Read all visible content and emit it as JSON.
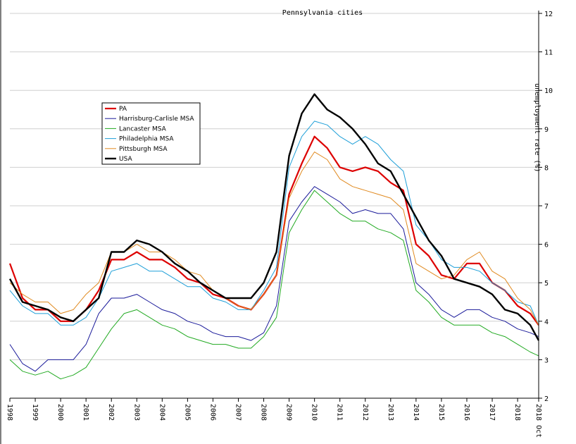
{
  "chart_data": {
    "type": "line",
    "title": "Pennsylvania cities",
    "xlabel": "",
    "ylabel": "unemployment rate (%)",
    "ylim": [
      2,
      12
    ],
    "y_ticks": [
      2,
      3,
      4,
      5,
      6,
      7,
      8,
      9,
      10,
      11,
      12
    ],
    "x_range": [
      1998.0,
      2018.83
    ],
    "x_tick_labels": [
      "1998",
      "1999",
      "2000",
      "2001",
      "2002",
      "2003",
      "2004",
      "2005",
      "2006",
      "2007",
      "2008",
      "2009",
      "2010",
      "2011",
      "2012",
      "2013",
      "2014",
      "2015",
      "2016",
      "2017",
      "2018",
      "2018 Oct"
    ],
    "grid": true,
    "legend_position": "upper-left",
    "series": [
      {
        "name": "PA",
        "color": "#dd0000",
        "width": 2.2,
        "points": [
          [
            1998.0,
            5.5
          ],
          [
            1998.5,
            4.6
          ],
          [
            1999.0,
            4.3
          ],
          [
            1999.5,
            4.3
          ],
          [
            2000.0,
            4.0
          ],
          [
            2000.5,
            4.0
          ],
          [
            2001.0,
            4.3
          ],
          [
            2001.5,
            4.8
          ],
          [
            2002.0,
            5.6
          ],
          [
            2002.5,
            5.6
          ],
          [
            2003.0,
            5.8
          ],
          [
            2003.5,
            5.6
          ],
          [
            2004.0,
            5.6
          ],
          [
            2004.5,
            5.4
          ],
          [
            2005.0,
            5.1
          ],
          [
            2005.5,
            5.0
          ],
          [
            2006.0,
            4.7
          ],
          [
            2006.5,
            4.6
          ],
          [
            2007.0,
            4.4
          ],
          [
            2007.5,
            4.3
          ],
          [
            2008.0,
            4.7
          ],
          [
            2008.5,
            5.2
          ],
          [
            2009.0,
            7.3
          ],
          [
            2009.5,
            8.1
          ],
          [
            2010.0,
            8.8
          ],
          [
            2010.5,
            8.5
          ],
          [
            2011.0,
            8.0
          ],
          [
            2011.5,
            7.9
          ],
          [
            2012.0,
            8.0
          ],
          [
            2012.5,
            7.9
          ],
          [
            2013.0,
            7.6
          ],
          [
            2013.5,
            7.4
          ],
          [
            2014.0,
            6.0
          ],
          [
            2014.5,
            5.7
          ],
          [
            2015.0,
            5.2
          ],
          [
            2015.5,
            5.1
          ],
          [
            2016.0,
            5.5
          ],
          [
            2016.5,
            5.5
          ],
          [
            2017.0,
            5.0
          ],
          [
            2017.5,
            4.8
          ],
          [
            2018.0,
            4.4
          ],
          [
            2018.5,
            4.2
          ],
          [
            2018.83,
            3.9
          ]
        ]
      },
      {
        "name": "Harrisburg-Carlisle MSA",
        "color": "#1a1a9a",
        "width": 1,
        "points": [
          [
            1998.0,
            3.4
          ],
          [
            1998.5,
            2.9
          ],
          [
            1999.0,
            2.7
          ],
          [
            1999.5,
            3.0
          ],
          [
            2000.0,
            3.0
          ],
          [
            2000.5,
            3.0
          ],
          [
            2001.0,
            3.4
          ],
          [
            2001.5,
            4.2
          ],
          [
            2002.0,
            4.6
          ],
          [
            2002.5,
            4.6
          ],
          [
            2003.0,
            4.7
          ],
          [
            2003.5,
            4.5
          ],
          [
            2004.0,
            4.3
          ],
          [
            2004.5,
            4.2
          ],
          [
            2005.0,
            4.0
          ],
          [
            2005.5,
            3.9
          ],
          [
            2006.0,
            3.7
          ],
          [
            2006.5,
            3.6
          ],
          [
            2007.0,
            3.6
          ],
          [
            2007.5,
            3.5
          ],
          [
            2008.0,
            3.7
          ],
          [
            2008.5,
            4.4
          ],
          [
            2009.0,
            6.6
          ],
          [
            2009.5,
            7.1
          ],
          [
            2010.0,
            7.5
          ],
          [
            2010.5,
            7.3
          ],
          [
            2011.0,
            7.1
          ],
          [
            2011.5,
            6.8
          ],
          [
            2012.0,
            6.9
          ],
          [
            2012.5,
            6.8
          ],
          [
            2013.0,
            6.8
          ],
          [
            2013.5,
            6.4
          ],
          [
            2014.0,
            5.0
          ],
          [
            2014.5,
            4.7
          ],
          [
            2015.0,
            4.3
          ],
          [
            2015.5,
            4.1
          ],
          [
            2016.0,
            4.3
          ],
          [
            2016.5,
            4.3
          ],
          [
            2017.0,
            4.1
          ],
          [
            2017.5,
            4.0
          ],
          [
            2018.0,
            3.8
          ],
          [
            2018.5,
            3.7
          ],
          [
            2018.83,
            3.6
          ]
        ]
      },
      {
        "name": "Lancaster MSA",
        "color": "#22aa22",
        "width": 1,
        "points": [
          [
            1998.0,
            3.0
          ],
          [
            1998.5,
            2.7
          ],
          [
            1999.0,
            2.6
          ],
          [
            1999.5,
            2.7
          ],
          [
            2000.0,
            2.5
          ],
          [
            2000.5,
            2.6
          ],
          [
            2001.0,
            2.8
          ],
          [
            2001.5,
            3.3
          ],
          [
            2002.0,
            3.8
          ],
          [
            2002.5,
            4.2
          ],
          [
            2003.0,
            4.3
          ],
          [
            2003.5,
            4.1
          ],
          [
            2004.0,
            3.9
          ],
          [
            2004.5,
            3.8
          ],
          [
            2005.0,
            3.6
          ],
          [
            2005.5,
            3.5
          ],
          [
            2006.0,
            3.4
          ],
          [
            2006.5,
            3.4
          ],
          [
            2007.0,
            3.3
          ],
          [
            2007.5,
            3.3
          ],
          [
            2008.0,
            3.6
          ],
          [
            2008.5,
            4.1
          ],
          [
            2009.0,
            6.3
          ],
          [
            2009.5,
            6.9
          ],
          [
            2010.0,
            7.4
          ],
          [
            2010.5,
            7.1
          ],
          [
            2011.0,
            6.8
          ],
          [
            2011.5,
            6.6
          ],
          [
            2012.0,
            6.6
          ],
          [
            2012.5,
            6.4
          ],
          [
            2013.0,
            6.3
          ],
          [
            2013.5,
            6.1
          ],
          [
            2014.0,
            4.8
          ],
          [
            2014.5,
            4.5
          ],
          [
            2015.0,
            4.1
          ],
          [
            2015.5,
            3.9
          ],
          [
            2016.0,
            3.9
          ],
          [
            2016.5,
            3.9
          ],
          [
            2017.0,
            3.7
          ],
          [
            2017.5,
            3.6
          ],
          [
            2018.0,
            3.4
          ],
          [
            2018.5,
            3.2
          ],
          [
            2018.83,
            3.1
          ]
        ]
      },
      {
        "name": "Philadelphia MSA",
        "color": "#1e9fd8",
        "width": 1,
        "points": [
          [
            1998.0,
            4.8
          ],
          [
            1998.5,
            4.4
          ],
          [
            1999.0,
            4.2
          ],
          [
            1999.5,
            4.2
          ],
          [
            2000.0,
            3.9
          ],
          [
            2000.5,
            3.9
          ],
          [
            2001.0,
            4.1
          ],
          [
            2001.5,
            4.6
          ],
          [
            2002.0,
            5.3
          ],
          [
            2002.5,
            5.4
          ],
          [
            2003.0,
            5.5
          ],
          [
            2003.5,
            5.3
          ],
          [
            2004.0,
            5.3
          ],
          [
            2004.5,
            5.1
          ],
          [
            2005.0,
            4.9
          ],
          [
            2005.5,
            4.9
          ],
          [
            2006.0,
            4.6
          ],
          [
            2006.5,
            4.5
          ],
          [
            2007.0,
            4.3
          ],
          [
            2007.5,
            4.3
          ],
          [
            2008.0,
            4.8
          ],
          [
            2008.5,
            5.4
          ],
          [
            2009.0,
            8.0
          ],
          [
            2009.5,
            8.8
          ],
          [
            2010.0,
            9.2
          ],
          [
            2010.5,
            9.1
          ],
          [
            2011.0,
            8.8
          ],
          [
            2011.5,
            8.6
          ],
          [
            2012.0,
            8.8
          ],
          [
            2012.5,
            8.6
          ],
          [
            2013.0,
            8.2
          ],
          [
            2013.5,
            7.9
          ],
          [
            2014.0,
            6.5
          ],
          [
            2014.5,
            6.1
          ],
          [
            2015.0,
            5.6
          ],
          [
            2015.5,
            5.4
          ],
          [
            2016.0,
            5.4
          ],
          [
            2016.5,
            5.3
          ],
          [
            2017.0,
            5.0
          ],
          [
            2017.5,
            4.8
          ],
          [
            2018.0,
            4.5
          ],
          [
            2018.5,
            4.4
          ],
          [
            2018.83,
            3.9
          ]
        ]
      },
      {
        "name": "Pittsburgh MSA",
        "color": "#e08a20",
        "width": 1,
        "points": [
          [
            1998.0,
            5.0
          ],
          [
            1998.5,
            4.7
          ],
          [
            1999.0,
            4.5
          ],
          [
            1999.5,
            4.5
          ],
          [
            2000.0,
            4.2
          ],
          [
            2000.5,
            4.3
          ],
          [
            2001.0,
            4.7
          ],
          [
            2001.5,
            5.0
          ],
          [
            2002.0,
            5.8
          ],
          [
            2002.5,
            5.8
          ],
          [
            2003.0,
            6.0
          ],
          [
            2003.5,
            5.8
          ],
          [
            2004.0,
            5.8
          ],
          [
            2004.5,
            5.6
          ],
          [
            2005.0,
            5.3
          ],
          [
            2005.5,
            5.2
          ],
          [
            2006.0,
            4.8
          ],
          [
            2006.5,
            4.6
          ],
          [
            2007.0,
            4.4
          ],
          [
            2007.5,
            4.3
          ],
          [
            2008.0,
            4.7
          ],
          [
            2008.5,
            5.2
          ],
          [
            2009.0,
            7.2
          ],
          [
            2009.5,
            7.9
          ],
          [
            2010.0,
            8.4
          ],
          [
            2010.5,
            8.2
          ],
          [
            2011.0,
            7.7
          ],
          [
            2011.5,
            7.5
          ],
          [
            2012.0,
            7.4
          ],
          [
            2012.5,
            7.3
          ],
          [
            2013.0,
            7.2
          ],
          [
            2013.5,
            6.9
          ],
          [
            2014.0,
            5.5
          ],
          [
            2014.5,
            5.3
          ],
          [
            2015.0,
            5.1
          ],
          [
            2015.5,
            5.2
          ],
          [
            2016.0,
            5.6
          ],
          [
            2016.5,
            5.8
          ],
          [
            2017.0,
            5.3
          ],
          [
            2017.5,
            5.1
          ],
          [
            2018.0,
            4.6
          ],
          [
            2018.5,
            4.3
          ],
          [
            2018.83,
            3.9
          ]
        ]
      },
      {
        "name": "USA",
        "color": "#000000",
        "width": 2.4,
        "points": [
          [
            1998.0,
            5.1
          ],
          [
            1998.5,
            4.5
          ],
          [
            1999.0,
            4.4
          ],
          [
            1999.5,
            4.3
          ],
          [
            2000.0,
            4.1
          ],
          [
            2000.5,
            4.0
          ],
          [
            2001.0,
            4.3
          ],
          [
            2001.5,
            4.6
          ],
          [
            2002.0,
            5.8
          ],
          [
            2002.5,
            5.8
          ],
          [
            2003.0,
            6.1
          ],
          [
            2003.5,
            6.0
          ],
          [
            2004.0,
            5.8
          ],
          [
            2004.5,
            5.5
          ],
          [
            2005.0,
            5.3
          ],
          [
            2005.5,
            5.0
          ],
          [
            2006.0,
            4.8
          ],
          [
            2006.5,
            4.6
          ],
          [
            2007.0,
            4.6
          ],
          [
            2007.5,
            4.6
          ],
          [
            2008.0,
            5.0
          ],
          [
            2008.5,
            5.8
          ],
          [
            2009.0,
            8.3
          ],
          [
            2009.5,
            9.4
          ],
          [
            2010.0,
            9.9
          ],
          [
            2010.5,
            9.5
          ],
          [
            2011.0,
            9.3
          ],
          [
            2011.5,
            9.0
          ],
          [
            2012.0,
            8.6
          ],
          [
            2012.5,
            8.1
          ],
          [
            2013.0,
            7.9
          ],
          [
            2013.5,
            7.3
          ],
          [
            2014.0,
            6.7
          ],
          [
            2014.5,
            6.1
          ],
          [
            2015.0,
            5.7
          ],
          [
            2015.5,
            5.1
          ],
          [
            2016.0,
            5.0
          ],
          [
            2016.5,
            4.9
          ],
          [
            2017.0,
            4.7
          ],
          [
            2017.5,
            4.3
          ],
          [
            2018.0,
            4.2
          ],
          [
            2018.5,
            3.9
          ],
          [
            2018.83,
            3.5
          ]
        ]
      }
    ]
  }
}
